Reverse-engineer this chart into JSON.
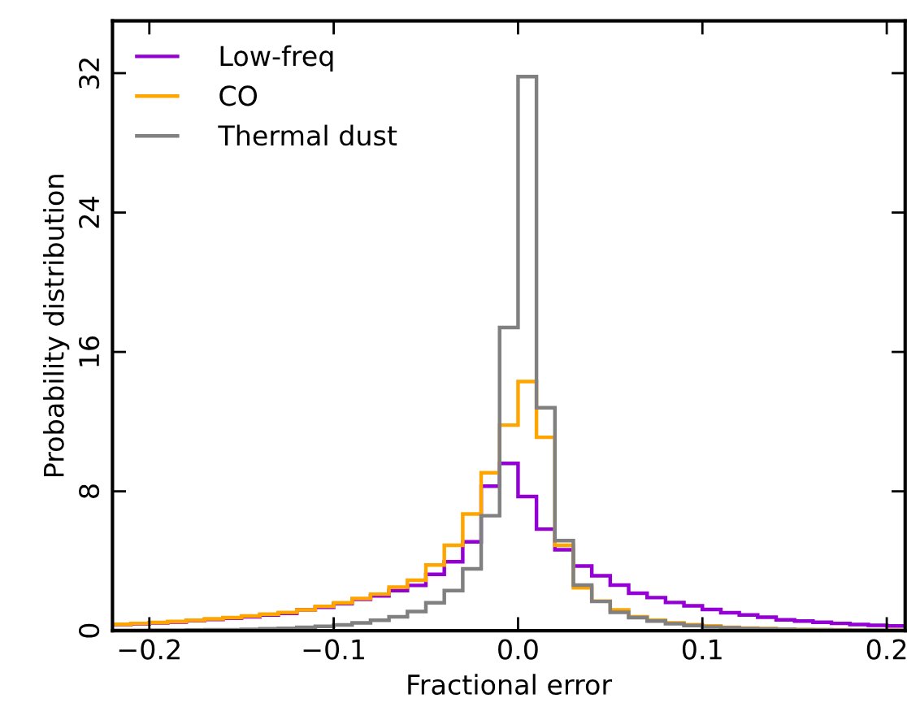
{
  "chart_data": {
    "type": "histogram",
    "xlabel": "Fractional error",
    "ylabel": "Probability distribution",
    "bins": [
      -0.22,
      -0.21,
      -0.2,
      -0.19,
      -0.18,
      -0.17,
      -0.16,
      -0.15,
      -0.14,
      -0.13,
      -0.12,
      -0.11,
      -0.1,
      -0.09,
      -0.08,
      -0.07,
      -0.06,
      -0.05,
      -0.04,
      -0.03,
      -0.02,
      -0.01,
      0.0,
      0.01,
      0.02,
      0.03,
      0.04,
      0.05,
      0.06,
      0.07,
      0.08,
      0.09,
      0.1,
      0.11,
      0.12,
      0.13,
      0.14,
      0.15,
      0.16,
      0.17,
      0.18,
      0.19,
      0.2,
      0.21
    ],
    "series": [
      {
        "name": "Low-freq",
        "color": "#9400d3",
        "values": [
          0.35,
          0.4,
          0.45,
          0.5,
          0.58,
          0.65,
          0.72,
          0.8,
          0.9,
          1.0,
          1.2,
          1.35,
          1.55,
          1.8,
          2.0,
          2.3,
          2.6,
          3.24,
          3.96,
          5.1,
          8.3,
          9.6,
          7.7,
          5.83,
          4.65,
          3.71,
          3.15,
          2.62,
          2.15,
          1.9,
          1.62,
          1.43,
          1.22,
          1.03,
          0.9,
          0.78,
          0.62,
          0.55,
          0.48,
          0.42,
          0.36,
          0.31,
          0.27
        ]
      },
      {
        "name": "CO",
        "color": "#ffa500",
        "values": [
          0.37,
          0.42,
          0.47,
          0.53,
          0.6,
          0.68,
          0.75,
          0.85,
          0.95,
          1.05,
          1.2,
          1.4,
          1.6,
          1.85,
          2.1,
          2.5,
          2.9,
          3.77,
          4.9,
          6.7,
          9.07,
          11.8,
          14.3,
          11.1,
          4.9,
          2.46,
          1.7,
          1.2,
          0.8,
          0.6,
          0.45,
          0.35,
          0.27,
          0.2,
          0.15,
          0.12,
          0.09,
          0.07,
          0.06,
          0.05,
          0.04,
          0.03,
          0.03
        ]
      },
      {
        "name": "Thermal dust",
        "color": "#808080",
        "values": [
          0.02,
          0.02,
          0.03,
          0.03,
          0.04,
          0.05,
          0.06,
          0.08,
          0.11,
          0.14,
          0.19,
          0.25,
          0.33,
          0.45,
          0.6,
          0.8,
          1.1,
          1.6,
          2.3,
          3.55,
          6.6,
          17.4,
          31.8,
          12.8,
          5.17,
          2.62,
          1.68,
          1.06,
          0.75,
          0.55,
          0.4,
          0.3,
          0.22,
          0.17,
          0.13,
          0.1,
          0.08,
          0.06,
          0.05,
          0.04,
          0.03,
          0.03,
          0.02
        ]
      }
    ],
    "xlim": [
      -0.22,
      0.21
    ],
    "ylim": [
      0,
      35
    ],
    "xticks": [
      {
        "value": -0.2,
        "label": "−0.2"
      },
      {
        "value": -0.1,
        "label": "−0.1"
      },
      {
        "value": 0.0,
        "label": "0.0"
      },
      {
        "value": 0.1,
        "label": "0.1"
      },
      {
        "value": 0.2,
        "label": "0.2"
      }
    ],
    "yticks": [
      0,
      8,
      16,
      24,
      32
    ],
    "grid": false,
    "legend": "top left"
  }
}
